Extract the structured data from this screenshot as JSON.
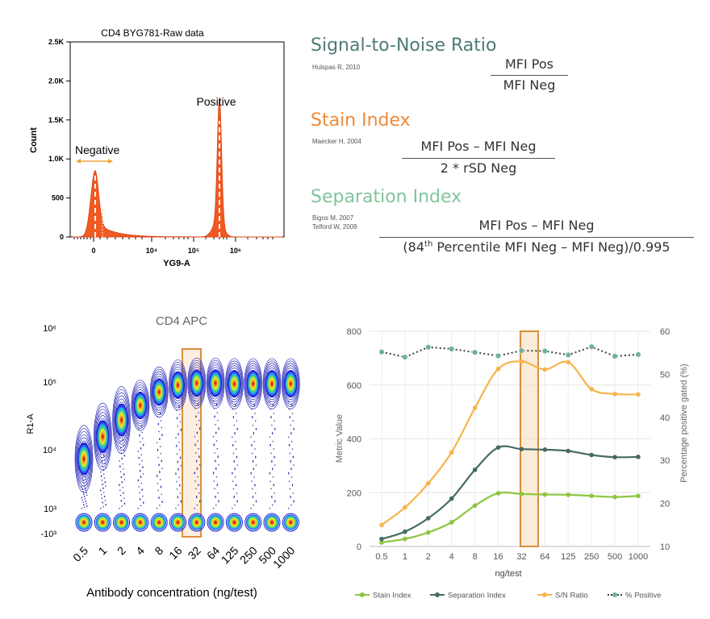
{
  "chart_data": [
    {
      "type": "area",
      "title": "CD4 BYG781-Raw data",
      "xlabel": "YG9-A",
      "ylabel": "Count",
      "x_ticks": [
        "0",
        "10⁴",
        "10⁵",
        "10⁶"
      ],
      "y_ticks": [
        "0",
        "500",
        "1.0K",
        "1.5K",
        "2.0K",
        "2.5K"
      ],
      "ylim": [
        0,
        2500
      ],
      "annotations": [
        "Negative",
        "Positive"
      ],
      "peaks": [
        {
          "name": "Negative",
          "position": "0",
          "height": 850
        },
        {
          "name": "Positive",
          "position": "4×10⁵",
          "height": 1600
        }
      ],
      "color": "#f15a22"
    },
    {
      "type": "scatter",
      "title": "CD4 APC",
      "xlabel": "Antibody concentration (ng/test)",
      "ylabel": "R1-A",
      "categories": [
        "0.5",
        "1",
        "2",
        "4",
        "8",
        "16",
        "32",
        "64",
        "125",
        "250",
        "500",
        "1000"
      ],
      "y_ticks": [
        "-10³",
        "10³",
        "10⁴",
        "10⁵",
        "10⁶"
      ],
      "highlight_category": "32",
      "negative_log_level": [
        2.9,
        2.9,
        2.9,
        2.9,
        2.9,
        2.9,
        2.9,
        2.9,
        2.9,
        2.9,
        2.9,
        2.9
      ],
      "positive_log_level": [
        3.78,
        4.13,
        4.39,
        4.62,
        4.83,
        4.94,
        4.97,
        4.97,
        4.96,
        4.96,
        4.96,
        4.96
      ]
    },
    {
      "type": "line",
      "xlabel": "ng/test",
      "ylabel": "Metric Value",
      "y2label": "Percentage positive gated (%)",
      "categories": [
        "0.5",
        "1",
        "2",
        "4",
        "8",
        "16",
        "32",
        "64",
        "125",
        "250",
        "500",
        "1000"
      ],
      "ylim": [
        0,
        800
      ],
      "y_ticks": [
        0,
        200,
        400,
        600,
        800
      ],
      "y2lim": [
        10,
        60
      ],
      "y2_ticks": [
        10,
        20,
        30,
        40,
        50,
        60
      ],
      "highlight_category": "32",
      "grid": true,
      "legend_position": "bottom",
      "series": [
        {
          "name": "Stain Index",
          "axis": "left",
          "color": "#8cc63f",
          "style": "solid",
          "values": [
            15,
            28,
            52,
            90,
            152,
            198,
            195,
            193,
            192,
            188,
            184,
            188
          ]
        },
        {
          "name": "Separation Index",
          "axis": "left",
          "color": "#456b63",
          "style": "solid",
          "values": [
            28,
            55,
            105,
            178,
            285,
            368,
            362,
            360,
            355,
            340,
            332,
            333
          ]
        },
        {
          "name": "S/N Ratio",
          "axis": "left",
          "color": "#f7b44b",
          "style": "solid",
          "values": [
            80,
            145,
            235,
            350,
            515,
            660,
            688,
            658,
            685,
            585,
            567,
            565
          ]
        },
        {
          "name": "% Positive",
          "axis": "right",
          "color": "#3a3f44",
          "marker_color": "#6cb49a",
          "style": "dotted",
          "values": [
            55.2,
            54.0,
            56.3,
            55.9,
            55.1,
            54.3,
            55.5,
            55.4,
            54.5,
            56.4,
            54.2,
            54.6
          ]
        }
      ]
    }
  ],
  "formulas": {
    "snr": {
      "title": "Signal-to-Noise Ratio",
      "citation": "Hulspas R, 2010",
      "numerator": "MFI Pos",
      "denominator": "MFI Neg",
      "color": "#4d7b78"
    },
    "stain": {
      "title": "Stain Index",
      "citation": "Maecker H, 2004",
      "numerator": "MFI Pos – MFI Neg",
      "denominator": "2 * rSD Neg",
      "color": "#ef8a3a"
    },
    "separation": {
      "title": "Separation Index",
      "citation_1": "Bigos M, 2007",
      "citation_2": "Telford W, 2009",
      "numerator": "MFI Pos – MFI Neg",
      "denominator_prefix": "(84",
      "denominator_sup": "th",
      "denominator_rest": " Percentile MFI Neg – MFI Neg)/0.995",
      "color": "#82c49c"
    }
  }
}
